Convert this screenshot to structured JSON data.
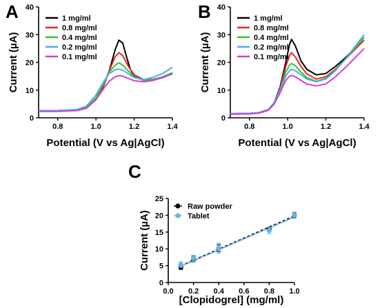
{
  "chart_data": [
    {
      "panel": "A",
      "type": "line",
      "xlabel": "Potential (V vs Ag|AgCl)",
      "ylabel": "Current (µA)",
      "xlim": [
        0.7,
        1.4
      ],
      "ylim": [
        0,
        40
      ],
      "xticks": [
        "0.8",
        "1.0",
        "1.2",
        "1.4"
      ],
      "yticks": [
        "0",
        "10",
        "20",
        "30",
        "40"
      ],
      "legend_position": "top-left",
      "series": [
        {
          "name": "1 mg/ml",
          "color": "#000000",
          "points": [
            [
              0.7,
              2.6
            ],
            [
              0.8,
              2.6
            ],
            [
              0.9,
              2.9
            ],
            [
              0.95,
              3.6
            ],
            [
              1.0,
              6.5
            ],
            [
              1.04,
              11.5
            ],
            [
              1.07,
              17.0
            ],
            [
              1.1,
              24.5
            ],
            [
              1.12,
              28.0
            ],
            [
              1.14,
              27.0
            ],
            [
              1.16,
              22.0
            ],
            [
              1.18,
              17.5
            ],
            [
              1.2,
              15.0
            ],
            [
              1.25,
              13.6
            ],
            [
              1.3,
              13.7
            ],
            [
              1.35,
              14.5
            ],
            [
              1.4,
              16.0
            ]
          ]
        },
        {
          "name": "0.8 mg/ml",
          "color": "#e8252a",
          "points": [
            [
              0.7,
              2.6
            ],
            [
              0.8,
              2.6
            ],
            [
              0.9,
              2.9
            ],
            [
              0.95,
              3.7
            ],
            [
              1.0,
              6.8
            ],
            [
              1.04,
              11.8
            ],
            [
              1.07,
              17.0
            ],
            [
              1.1,
              22.0
            ],
            [
              1.12,
              23.5
            ],
            [
              1.14,
              22.5
            ],
            [
              1.17,
              18.5
            ],
            [
              1.2,
              15.5
            ],
            [
              1.25,
              13.8
            ],
            [
              1.3,
              13.9
            ],
            [
              1.35,
              14.7
            ],
            [
              1.4,
              16.2
            ]
          ]
        },
        {
          "name": "0.4 mg/ml",
          "color": "#35c335",
          "points": [
            [
              0.7,
              2.6
            ],
            [
              0.8,
              2.6
            ],
            [
              0.9,
              2.9
            ],
            [
              0.95,
              3.8
            ],
            [
              1.0,
              7.2
            ],
            [
              1.04,
              12.2
            ],
            [
              1.07,
              16.5
            ],
            [
              1.1,
              19.0
            ],
            [
              1.12,
              19.8
            ],
            [
              1.14,
              19.0
            ],
            [
              1.17,
              16.8
            ],
            [
              1.2,
              14.8
            ],
            [
              1.25,
              13.5
            ],
            [
              1.3,
              13.8
            ],
            [
              1.35,
              14.8
            ],
            [
              1.4,
              16.3
            ]
          ]
        },
        {
          "name": "0.2 mg/ml",
          "color": "#4aaee8",
          "points": [
            [
              0.7,
              2.6
            ],
            [
              0.8,
              2.6
            ],
            [
              0.9,
              3.0
            ],
            [
              0.95,
              4.2
            ],
            [
              1.0,
              8.2
            ],
            [
              1.04,
              13.0
            ],
            [
              1.07,
              16.0
            ],
            [
              1.1,
              17.3
            ],
            [
              1.12,
              17.6
            ],
            [
              1.14,
              17.2
            ],
            [
              1.17,
              15.8
            ],
            [
              1.2,
              14.5
            ],
            [
              1.25,
              13.8
            ],
            [
              1.3,
              14.6
            ],
            [
              1.35,
              16.0
            ],
            [
              1.4,
              18.2
            ]
          ]
        },
        {
          "name": "0.1 mg/ml",
          "color": "#d040d8",
          "points": [
            [
              0.7,
              2.3
            ],
            [
              0.8,
              2.3
            ],
            [
              0.9,
              2.6
            ],
            [
              0.95,
              3.4
            ],
            [
              1.0,
              6.5
            ],
            [
              1.04,
              10.5
            ],
            [
              1.07,
              13.2
            ],
            [
              1.1,
              14.8
            ],
            [
              1.12,
              15.2
            ],
            [
              1.14,
              15.0
            ],
            [
              1.17,
              14.2
            ],
            [
              1.2,
              13.4
            ],
            [
              1.25,
              13.0
            ],
            [
              1.3,
              13.5
            ],
            [
              1.35,
              14.5
            ],
            [
              1.4,
              15.8
            ]
          ]
        }
      ]
    },
    {
      "panel": "B",
      "type": "line",
      "xlabel": "Potential (V vs Ag|AgCl)",
      "ylabel": "Current (µA)",
      "xlim": [
        0.7,
        1.4
      ],
      "ylim": [
        0,
        40
      ],
      "xticks": [
        "0.8",
        "1.0",
        "1.2",
        "1.4"
      ],
      "yticks": [
        "0",
        "10",
        "20",
        "30",
        "40"
      ],
      "legend_position": "top-left",
      "series": [
        {
          "name": "1 mg/ml",
          "color": "#000000",
          "points": [
            [
              0.7,
              1.5
            ],
            [
              0.8,
              1.6
            ],
            [
              0.85,
              1.9
            ],
            [
              0.9,
              3.0
            ],
            [
              0.93,
              5.5
            ],
            [
              0.96,
              11.0
            ],
            [
              0.99,
              20.0
            ],
            [
              1.01,
              26.5
            ],
            [
              1.02,
              28.3
            ],
            [
              1.04,
              26.0
            ],
            [
              1.07,
              20.5
            ],
            [
              1.1,
              17.5
            ],
            [
              1.15,
              15.5
            ],
            [
              1.2,
              16.0
            ],
            [
              1.25,
              18.5
            ],
            [
              1.3,
              21.5
            ],
            [
              1.35,
              25.0
            ],
            [
              1.4,
              29.0
            ]
          ]
        },
        {
          "name": "0.8 mg/ml",
          "color": "#e8252a",
          "points": [
            [
              0.7,
              1.5
            ],
            [
              0.8,
              1.6
            ],
            [
              0.85,
              1.9
            ],
            [
              0.9,
              3.0
            ],
            [
              0.93,
              5.5
            ],
            [
              0.96,
              10.5
            ],
            [
              0.99,
              18.5
            ],
            [
              1.01,
              22.5
            ],
            [
              1.02,
              23.5
            ],
            [
              1.04,
              22.0
            ],
            [
              1.07,
              18.5
            ],
            [
              1.1,
              15.8
            ],
            [
              1.15,
              14.0
            ],
            [
              1.2,
              14.8
            ],
            [
              1.25,
              17.5
            ],
            [
              1.3,
              21.0
            ],
            [
              1.35,
              24.5
            ],
            [
              1.4,
              28.0
            ]
          ]
        },
        {
          "name": "0.4 mg/ml",
          "color": "#35c335",
          "points": [
            [
              0.7,
              1.5
            ],
            [
              0.8,
              1.6
            ],
            [
              0.85,
              1.9
            ],
            [
              0.9,
              3.0
            ],
            [
              0.93,
              5.5
            ],
            [
              0.96,
              10.0
            ],
            [
              0.99,
              16.5
            ],
            [
              1.01,
              19.0
            ],
            [
              1.02,
              19.6
            ],
            [
              1.04,
              18.8
            ],
            [
              1.07,
              16.5
            ],
            [
              1.1,
              14.5
            ],
            [
              1.15,
              13.2
            ],
            [
              1.2,
              14.2
            ],
            [
              1.25,
              17.2
            ],
            [
              1.3,
              21.0
            ],
            [
              1.35,
              25.0
            ],
            [
              1.4,
              29.0
            ]
          ]
        },
        {
          "name": "0.2 mg/ml",
          "color": "#4aaee8",
          "points": [
            [
              0.7,
              1.5
            ],
            [
              0.8,
              1.6
            ],
            [
              0.85,
              1.9
            ],
            [
              0.9,
              3.0
            ],
            [
              0.93,
              5.5
            ],
            [
              0.96,
              10.0
            ],
            [
              0.99,
              15.0
            ],
            [
              1.01,
              17.0
            ],
            [
              1.02,
              17.5
            ],
            [
              1.04,
              17.0
            ],
            [
              1.07,
              15.5
            ],
            [
              1.1,
              14.0
            ],
            [
              1.15,
              13.0
            ],
            [
              1.2,
              14.0
            ],
            [
              1.25,
              17.0
            ],
            [
              1.3,
              21.0
            ],
            [
              1.35,
              25.5
            ],
            [
              1.4,
              30.0
            ]
          ]
        },
        {
          "name": "0.1 mg/ml",
          "color": "#d040d8",
          "points": [
            [
              0.7,
              1.3
            ],
            [
              0.8,
              1.4
            ],
            [
              0.85,
              1.7
            ],
            [
              0.9,
              2.7
            ],
            [
              0.93,
              5.0
            ],
            [
              0.96,
              9.0
            ],
            [
              0.99,
              13.5
            ],
            [
              1.01,
              15.0
            ],
            [
              1.02,
              15.3
            ],
            [
              1.04,
              14.8
            ],
            [
              1.07,
              13.5
            ],
            [
              1.1,
              12.2
            ],
            [
              1.15,
              11.5
            ],
            [
              1.2,
              12.2
            ],
            [
              1.25,
              14.8
            ],
            [
              1.3,
              18.0
            ],
            [
              1.35,
              21.5
            ],
            [
              1.4,
              25.0
            ]
          ]
        }
      ]
    },
    {
      "panel": "C",
      "type": "scatter",
      "xlabel": "[Clopidogrel] (mg/ml)",
      "ylabel": "Current (µA)",
      "xlim": [
        0,
        1.0
      ],
      "ylim": [
        0,
        25
      ],
      "xticks": [
        "0.0",
        "0.2",
        "0.4",
        "0.6",
        "0.8",
        "1.0"
      ],
      "yticks": [
        "0",
        "5",
        "10",
        "15",
        "20",
        "25"
      ],
      "legend_position": "top-left",
      "series": [
        {
          "name": "Raw powder",
          "color": "#000000",
          "line_style": "dashed",
          "x": [
            0.1,
            0.2,
            0.4,
            0.8,
            1.0
          ],
          "y": [
            4.5,
            7.0,
            10.2,
            15.8,
            20.0
          ],
          "err": [
            0.6,
            0.8,
            1.0,
            0.6,
            0.8
          ],
          "fit": [
            [
              0.1,
              5.0
            ],
            [
              1.0,
              19.8
            ]
          ]
        },
        {
          "name": "Tablet",
          "color": "#6ab4e6",
          "line_style": "solid",
          "x": [
            0.1,
            0.2,
            0.4,
            0.8,
            1.0
          ],
          "y": [
            5.3,
            7.2,
            10.2,
            15.5,
            20.0
          ],
          "err": [
            0.8,
            0.9,
            1.5,
            0.9,
            0.9
          ],
          "fit": [
            [
              0.1,
              4.8
            ],
            [
              1.0,
              19.5
            ]
          ]
        }
      ]
    }
  ]
}
